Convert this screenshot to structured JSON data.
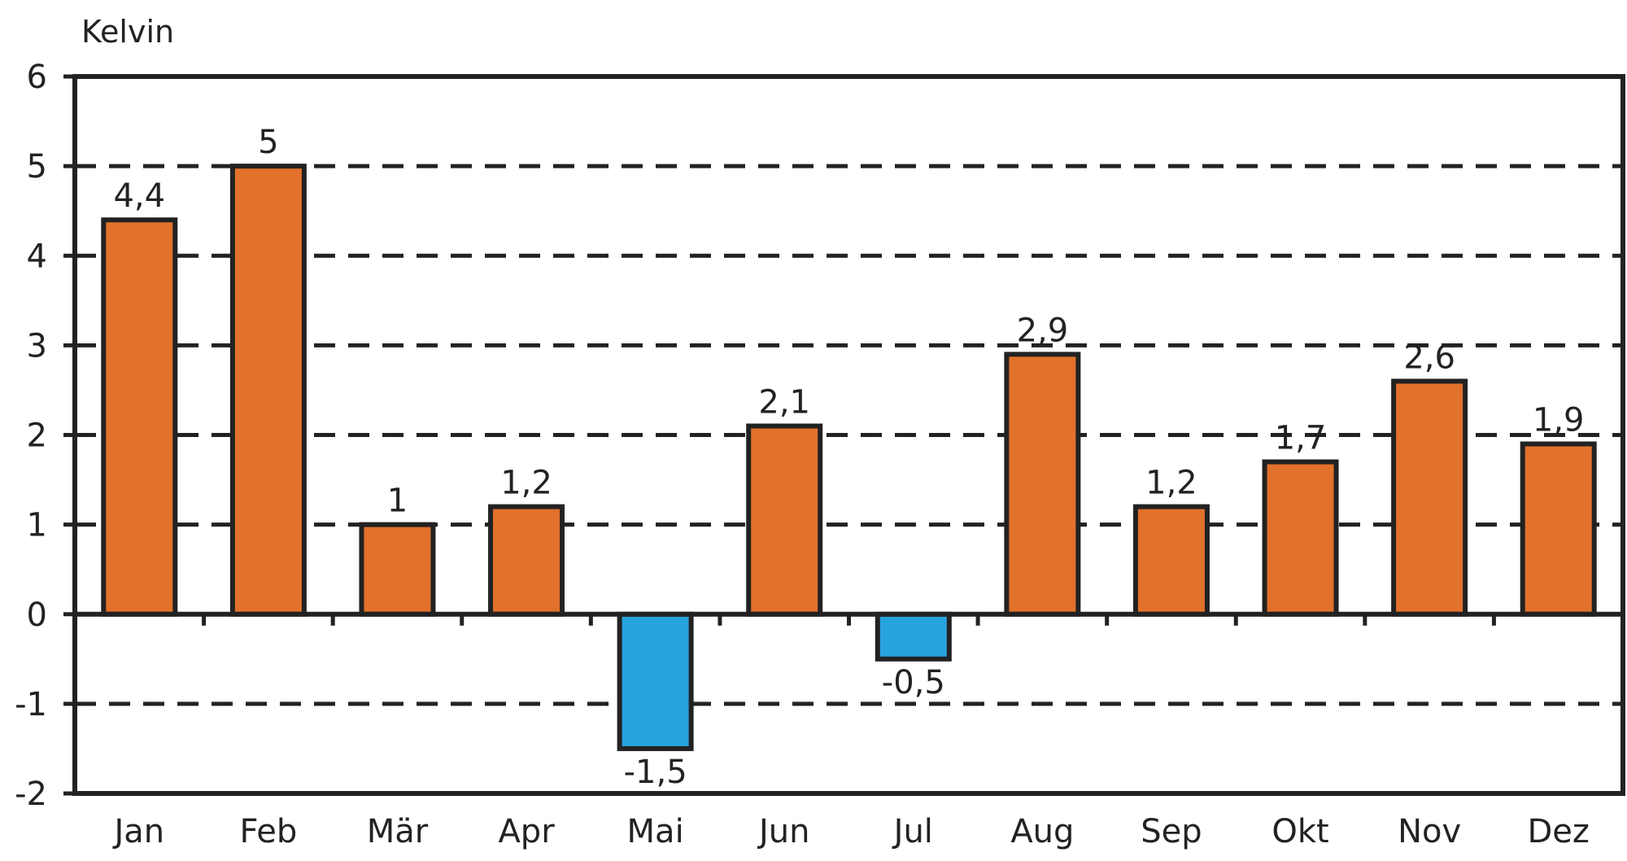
{
  "chart_data": {
    "type": "bar",
    "title": "",
    "ylabel": "Kelvin",
    "xlabel": "",
    "categories": [
      "Jan",
      "Feb",
      "Mär",
      "Apr",
      "Mai",
      "Jun",
      "Jul",
      "Aug",
      "Sep",
      "Okt",
      "Nov",
      "Dez"
    ],
    "values": [
      4.4,
      5,
      1,
      1.2,
      -1.5,
      2.1,
      -0.5,
      2.9,
      1.2,
      1.7,
      2.6,
      1.9
    ],
    "value_labels": [
      "4,4",
      "5",
      "1",
      "1,2",
      "-1,5",
      "2,1",
      "-0,5",
      "2,9",
      "1,2",
      "1,7",
      "2,6",
      "1,9"
    ],
    "ylim": [
      -2,
      6
    ],
    "yticks": [
      6,
      5,
      4,
      3,
      2,
      1,
      0,
      -1,
      -2
    ],
    "grid": "dashed horizontal",
    "legend": "none",
    "colors": {
      "positive": "#e2712b",
      "negative": "#27a3dd",
      "outline": "#222222"
    }
  }
}
